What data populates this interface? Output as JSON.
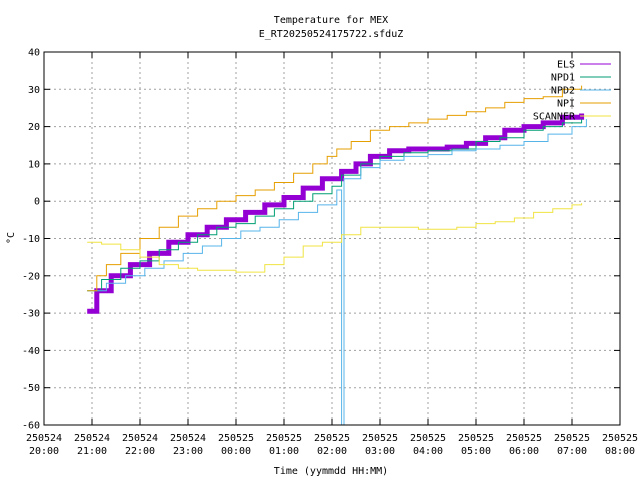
{
  "chart_data": {
    "type": "line",
    "title": "Temperature for MEX",
    "subtitle": "E_RT20250524175722.sfduZ",
    "xlabel": "Time (yymmdd HH:MM)",
    "ylabel": "°C",
    "ylim": [
      -60,
      40
    ],
    "yticks": [
      -60,
      -50,
      -40,
      -30,
      -20,
      -10,
      0,
      10,
      20,
      30,
      40
    ],
    "xlim": [
      0,
      12
    ],
    "xticks": [
      {
        "x": 0,
        "date": "250524",
        "time": "20:00"
      },
      {
        "x": 1,
        "date": "250524",
        "time": "21:00"
      },
      {
        "x": 2,
        "date": "250524",
        "time": "22:00"
      },
      {
        "x": 3,
        "date": "250524",
        "time": "23:00"
      },
      {
        "x": 4,
        "date": "250525",
        "time": "00:00"
      },
      {
        "x": 5,
        "date": "250525",
        "time": "01:00"
      },
      {
        "x": 6,
        "date": "250525",
        "time": "02:00"
      },
      {
        "x": 7,
        "date": "250525",
        "time": "03:00"
      },
      {
        "x": 8,
        "date": "250525",
        "time": "04:00"
      },
      {
        "x": 9,
        "date": "250525",
        "time": "05:00"
      },
      {
        "x": 10,
        "date": "250525",
        "time": "06:00"
      },
      {
        "x": 11,
        "date": "250525",
        "time": "07:00"
      },
      {
        "x": 12,
        "date": "250525",
        "time": "08:00"
      }
    ],
    "grid": true,
    "legend": "top-right",
    "series": [
      {
        "name": "ELS",
        "color": "#9400d3",
        "width": 5,
        "points": [
          [
            0.9,
            -29.5
          ],
          [
            1.1,
            -24
          ],
          [
            1.4,
            -20
          ],
          [
            1.8,
            -17
          ],
          [
            2.2,
            -14
          ],
          [
            2.6,
            -11
          ],
          [
            3.0,
            -9
          ],
          [
            3.4,
            -7
          ],
          [
            3.8,
            -5
          ],
          [
            4.2,
            -3
          ],
          [
            4.6,
            -1
          ],
          [
            5.0,
            1
          ],
          [
            5.4,
            3.5
          ],
          [
            5.8,
            6
          ],
          [
            6.2,
            8
          ],
          [
            6.5,
            10
          ],
          [
            6.8,
            12
          ],
          [
            7.2,
            13.5
          ],
          [
            7.6,
            14
          ],
          [
            8.0,
            14
          ],
          [
            8.4,
            14.5
          ],
          [
            8.8,
            15.5
          ],
          [
            9.2,
            17
          ],
          [
            9.6,
            19
          ],
          [
            10.0,
            20
          ],
          [
            10.4,
            21
          ],
          [
            10.8,
            22.5
          ],
          [
            11.2,
            23.5
          ]
        ]
      },
      {
        "name": "NPD1",
        "color": "#009e73",
        "width": 1,
        "points": [
          [
            0.9,
            -24
          ],
          [
            1.2,
            -21
          ],
          [
            1.6,
            -18
          ],
          [
            2.0,
            -16
          ],
          [
            2.4,
            -13
          ],
          [
            2.8,
            -11
          ],
          [
            3.2,
            -9
          ],
          [
            3.6,
            -7
          ],
          [
            4.0,
            -6
          ],
          [
            4.4,
            -4
          ],
          [
            4.8,
            -2
          ],
          [
            5.2,
            0
          ],
          [
            5.6,
            2
          ],
          [
            6.0,
            4
          ],
          [
            6.2,
            7
          ],
          [
            6.6,
            10
          ],
          [
            7.0,
            12
          ],
          [
            7.5,
            13
          ],
          [
            8.0,
            13.5
          ],
          [
            8.5,
            14
          ],
          [
            9.0,
            16
          ],
          [
            9.5,
            17
          ],
          [
            10.0,
            19
          ],
          [
            10.4,
            20
          ],
          [
            10.8,
            21
          ],
          [
            11.2,
            22
          ]
        ]
      },
      {
        "name": "NPD2",
        "color": "#56b4e9",
        "width": 1,
        "points": [
          [
            0.9,
            -24
          ],
          [
            1.3,
            -22
          ],
          [
            1.7,
            -20
          ],
          [
            2.1,
            -18
          ],
          [
            2.5,
            -16
          ],
          [
            2.9,
            -14
          ],
          [
            3.3,
            -12
          ],
          [
            3.7,
            -10
          ],
          [
            4.1,
            -8
          ],
          [
            4.5,
            -7
          ],
          [
            4.9,
            -5
          ],
          [
            5.3,
            -3
          ],
          [
            5.7,
            -1
          ],
          [
            6.1,
            3
          ],
          [
            6.2,
            -60
          ],
          [
            6.25,
            6
          ],
          [
            6.6,
            9
          ],
          [
            7.0,
            11
          ],
          [
            7.5,
            12
          ],
          [
            8.0,
            12.5
          ],
          [
            8.5,
            13.5
          ],
          [
            9.0,
            14
          ],
          [
            9.5,
            15
          ],
          [
            10.0,
            16
          ],
          [
            10.5,
            18
          ],
          [
            11.0,
            20
          ],
          [
            11.3,
            22
          ]
        ]
      },
      {
        "name": "NPI",
        "color": "#e69f00",
        "width": 1,
        "points": [
          [
            0.9,
            -24
          ],
          [
            1.1,
            -20
          ],
          [
            1.3,
            -17
          ],
          [
            1.6,
            -14
          ],
          [
            2.0,
            -10
          ],
          [
            2.4,
            -7
          ],
          [
            2.8,
            -4
          ],
          [
            3.2,
            -2
          ],
          [
            3.6,
            0
          ],
          [
            4.0,
            1.5
          ],
          [
            4.4,
            3
          ],
          [
            4.8,
            5
          ],
          [
            5.2,
            7.5
          ],
          [
            5.6,
            10
          ],
          [
            5.9,
            12
          ],
          [
            6.1,
            14
          ],
          [
            6.4,
            16
          ],
          [
            6.8,
            19
          ],
          [
            7.2,
            20
          ],
          [
            7.6,
            21
          ],
          [
            8.0,
            22
          ],
          [
            8.4,
            23
          ],
          [
            8.8,
            24
          ],
          [
            9.2,
            25
          ],
          [
            9.6,
            26.5
          ],
          [
            10.0,
            27.5
          ],
          [
            10.4,
            28
          ],
          [
            10.8,
            30
          ],
          [
            11.2,
            31
          ]
        ]
      },
      {
        "name": "SCANNER",
        "color": "#f0e442",
        "width": 1,
        "points": [
          [
            0.9,
            -11
          ],
          [
            1.2,
            -11.5
          ],
          [
            1.6,
            -13
          ],
          [
            2.0,
            -15
          ],
          [
            2.4,
            -17
          ],
          [
            2.8,
            -18
          ],
          [
            3.2,
            -18.5
          ],
          [
            3.6,
            -18.5
          ],
          [
            4.0,
            -19
          ],
          [
            4.3,
            -19
          ],
          [
            4.6,
            -17
          ],
          [
            5.0,
            -15
          ],
          [
            5.4,
            -12
          ],
          [
            5.8,
            -11
          ],
          [
            6.2,
            -9
          ],
          [
            6.6,
            -7
          ],
          [
            7.0,
            -7
          ],
          [
            7.4,
            -7
          ],
          [
            7.8,
            -7.5
          ],
          [
            8.2,
            -7.5
          ],
          [
            8.6,
            -7
          ],
          [
            9.0,
            -6
          ],
          [
            9.4,
            -5.5
          ],
          [
            9.8,
            -4.5
          ],
          [
            10.2,
            -3
          ],
          [
            10.6,
            -2
          ],
          [
            11.0,
            -1
          ],
          [
            11.2,
            -0.5
          ]
        ]
      }
    ]
  }
}
